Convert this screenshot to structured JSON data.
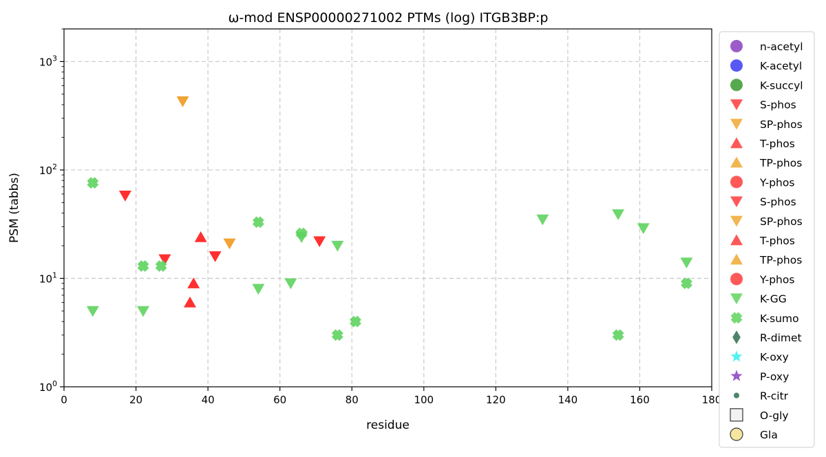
{
  "chart_data": {
    "type": "scatter",
    "title": "ω-mod ENSP00000271002 PTMs (log) ITGB3BP:p",
    "xlabel": "residue",
    "ylabel": "PSM (tabbs)",
    "xlim": [
      0,
      180
    ],
    "ylim": [
      1,
      2000
    ],
    "yscale": "log",
    "grid": true,
    "legend_position": "outside right",
    "x_ticks": [
      0,
      20,
      40,
      60,
      80,
      100,
      120,
      140,
      160,
      180
    ],
    "y_ticks": [
      {
        "value": 1,
        "base": "10",
        "exp": "0"
      },
      {
        "value": 10,
        "base": "10",
        "exp": "1"
      },
      {
        "value": 100,
        "base": "10",
        "exp": "2"
      },
      {
        "value": 1000,
        "base": "10",
        "exp": "3"
      }
    ],
    "legend": [
      {
        "label": "n-acetyl",
        "marker": "circle",
        "color": "#8a3fbf"
      },
      {
        "label": "K-acetyl",
        "marker": "circle",
        "color": "#3b3bf5"
      },
      {
        "label": "K-succyl",
        "marker": "circle",
        "color": "#3a9a2e"
      },
      {
        "label": "S-phos",
        "marker": "triangle-down",
        "color": "#ff3b3b"
      },
      {
        "label": "SP-phos",
        "marker": "triangle-down",
        "color": "#f0a830"
      },
      {
        "label": "T-phos",
        "marker": "triangle-up",
        "color": "#ff3b3b"
      },
      {
        "label": "TP-phos",
        "marker": "triangle-up",
        "color": "#f0a830"
      },
      {
        "label": "Y-phos",
        "marker": "circle",
        "color": "#ff3b3b"
      },
      {
        "label": "S-phos",
        "marker": "triangle-down",
        "color": "#ff3b3b"
      },
      {
        "label": "SP-phos",
        "marker": "triangle-down",
        "color": "#f0a830"
      },
      {
        "label": "T-phos",
        "marker": "triangle-up",
        "color": "#ff3b3b"
      },
      {
        "label": "TP-phos",
        "marker": "triangle-up",
        "color": "#f0a830"
      },
      {
        "label": "Y-phos",
        "marker": "circle",
        "color": "#ff3b3b"
      },
      {
        "label": "K-GG",
        "marker": "triangle-down",
        "color": "#5fd35f"
      },
      {
        "label": "K-sumo",
        "marker": "x",
        "color": "#5fd35f"
      },
      {
        "label": "R-dimet",
        "marker": "diamond",
        "color": "#2f6e4f"
      },
      {
        "label": "K-oxy",
        "marker": "star",
        "color": "#33f0f0"
      },
      {
        "label": "P-oxy",
        "marker": "star",
        "color": "#8a3fbf"
      },
      {
        "label": "R-citr",
        "marker": "small-circle",
        "color": "#2f6e4f"
      },
      {
        "label": "O-gly",
        "marker": "square",
        "color": "#f2f2f2"
      },
      {
        "label": "Gla",
        "marker": "circle-outline",
        "color": "#f5e6a0"
      }
    ],
    "series": [
      {
        "type": "S-phos",
        "marker": "triangle-down",
        "color": "#ff1a1a",
        "points": [
          [
            17,
            58
          ],
          [
            28,
            15
          ],
          [
            42,
            16
          ],
          [
            71,
            22
          ]
        ]
      },
      {
        "type": "SP-phos",
        "marker": "triangle-down",
        "color": "#ee9a1e",
        "points": [
          [
            33,
            430
          ],
          [
            46,
            21
          ]
        ]
      },
      {
        "type": "T-phos",
        "marker": "triangle-up",
        "color": "#ff1a1a",
        "points": [
          [
            35,
            6
          ],
          [
            36,
            9
          ],
          [
            38,
            24
          ]
        ]
      },
      {
        "type": "K-GG",
        "marker": "triangle-down",
        "color": "#5fd35f",
        "points": [
          [
            8,
            5
          ],
          [
            22,
            5
          ],
          [
            54,
            8
          ],
          [
            63,
            9
          ],
          [
            66,
            24
          ],
          [
            76,
            20
          ],
          [
            133,
            35
          ],
          [
            154,
            39
          ],
          [
            161,
            29
          ],
          [
            173,
            14
          ]
        ]
      },
      {
        "type": "K-sumo",
        "marker": "x",
        "color": "#5fd35f",
        "points": [
          [
            8,
            76
          ],
          [
            22,
            13
          ],
          [
            27,
            13
          ],
          [
            54,
            33
          ],
          [
            66,
            26
          ],
          [
            76,
            3
          ],
          [
            81,
            4
          ],
          [
            154,
            3
          ],
          [
            173,
            9
          ]
        ]
      }
    ]
  }
}
